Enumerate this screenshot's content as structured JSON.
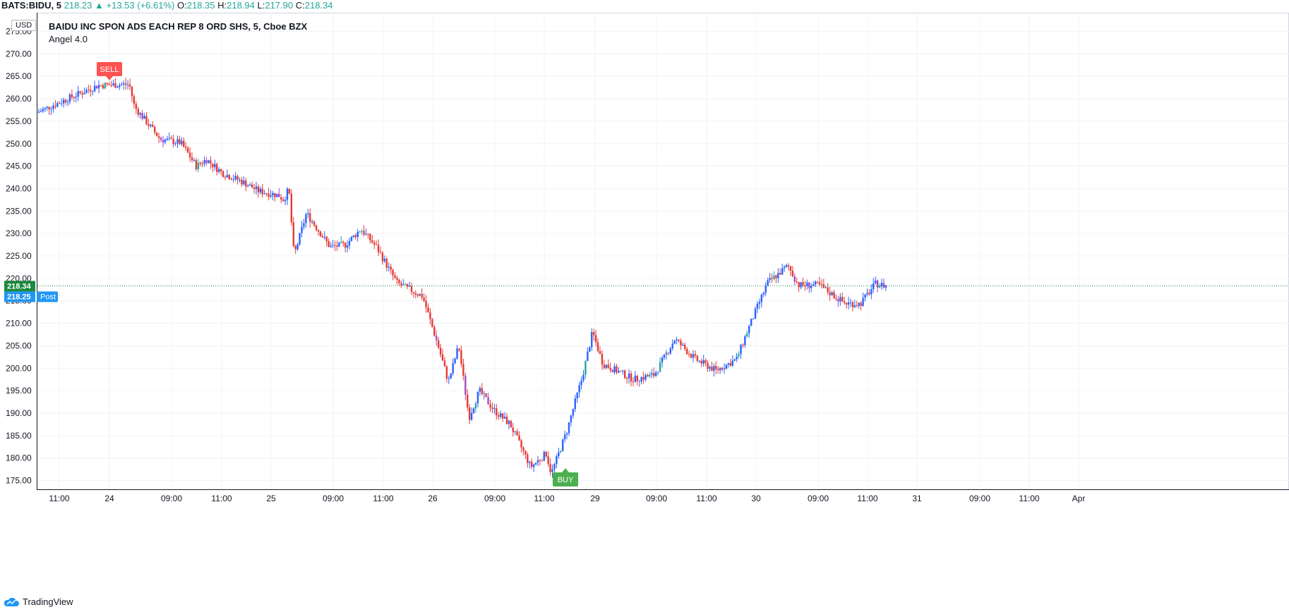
{
  "header": {
    "symbol": "BATS:BIDU, 5",
    "last": "218.23",
    "change": "+13.53 (+6.61%)",
    "open_label": "O:",
    "open": "218.35",
    "high_label": "H:",
    "high": "218.94",
    "low_label": "L:",
    "low": "217.90",
    "close_label": "C:",
    "close": "218.34"
  },
  "chart": {
    "title": "BAIDU INC SPON ADS EACH REP 8 ORD SHS, 5, Cboe BZX",
    "indicator": "Angel 4.0",
    "currency": "USD",
    "last_price_tag": "218.34",
    "post_price_tag": "218.25",
    "post_label": "Post",
    "signals": [
      {
        "label": "SELL",
        "price": 263.3,
        "color": "#ff5252"
      },
      {
        "label": "BUY",
        "price": 176.5,
        "color": "#4caf50"
      }
    ]
  },
  "colors": {
    "up": "#2962ff",
    "down": "#e53935",
    "signal_up": "#26a69a",
    "signal_down": "#ab47bc",
    "last_price": "#1b8a3e",
    "post_price": "#2196f3",
    "grid": "#f0f3fa"
  },
  "brand": {
    "name": "TradingView"
  },
  "chart_data": {
    "type": "candlestick",
    "ylim": [
      174,
      276
    ],
    "y_ticks": [
      "275.00",
      "270.00",
      "265.00",
      "260.00",
      "255.00",
      "250.00",
      "245.00",
      "240.00",
      "235.00",
      "230.00",
      "225.00",
      "220.00",
      "215.00",
      "210.00",
      "205.00",
      "200.00",
      "195.00",
      "190.00",
      "185.00",
      "180.00",
      "175.00"
    ],
    "x_ticks": [
      "11:00",
      "24",
      "09:00",
      "11:00",
      "25",
      "09:00",
      "11:00",
      "26",
      "09:00",
      "11:00",
      "29",
      "09:00",
      "11:00",
      "30",
      "09:00",
      "11:00",
      "31",
      "09:00",
      "11:00",
      "Apr"
    ],
    "price_path": [
      [
        0,
        256.9
      ],
      [
        0.035,
        260.5
      ],
      [
        0.06,
        263.0
      ],
      [
        0.09,
        263.2
      ],
      [
        0.095,
        258.2
      ],
      [
        0.12,
        251.0
      ],
      [
        0.14,
        250.2
      ],
      [
        0.155,
        245.0
      ],
      [
        0.165,
        246.5
      ],
      [
        0.18,
        243.5
      ],
      [
        0.2,
        241.5
      ],
      [
        0.215,
        239.5
      ],
      [
        0.235,
        238.5
      ],
      [
        0.24,
        237.5
      ],
      [
        0.245,
        240.0
      ],
      [
        0.25,
        225.0
      ],
      [
        0.262,
        234.5
      ],
      [
        0.285,
        227.0
      ],
      [
        0.3,
        227.5
      ],
      [
        0.315,
        231.0
      ],
      [
        0.33,
        227.0
      ],
      [
        0.35,
        219.0
      ],
      [
        0.375,
        216.0
      ],
      [
        0.39,
        205.0
      ],
      [
        0.4,
        197.0
      ],
      [
        0.41,
        205.0
      ],
      [
        0.42,
        189.0
      ],
      [
        0.43,
        195.0
      ],
      [
        0.445,
        190.5
      ],
      [
        0.46,
        187.5
      ],
      [
        0.48,
        178.0
      ],
      [
        0.495,
        181.0
      ],
      [
        0.5,
        176.5
      ],
      [
        0.515,
        186.0
      ],
      [
        0.53,
        198.0
      ],
      [
        0.54,
        208.0
      ],
      [
        0.55,
        201.0
      ],
      [
        0.58,
        197.5
      ],
      [
        0.6,
        198.5
      ],
      [
        0.62,
        206.5
      ],
      [
        0.64,
        202.0
      ],
      [
        0.66,
        199.5
      ],
      [
        0.68,
        202.0
      ],
      [
        0.69,
        208.0
      ],
      [
        0.71,
        219.0
      ],
      [
        0.73,
        222.8
      ],
      [
        0.74,
        218.5
      ],
      [
        0.76,
        218.5
      ],
      [
        0.785,
        214.5
      ],
      [
        0.8,
        214.3
      ],
      [
        0.815,
        218.8
      ],
      [
        0.825,
        218.34
      ]
    ]
  }
}
